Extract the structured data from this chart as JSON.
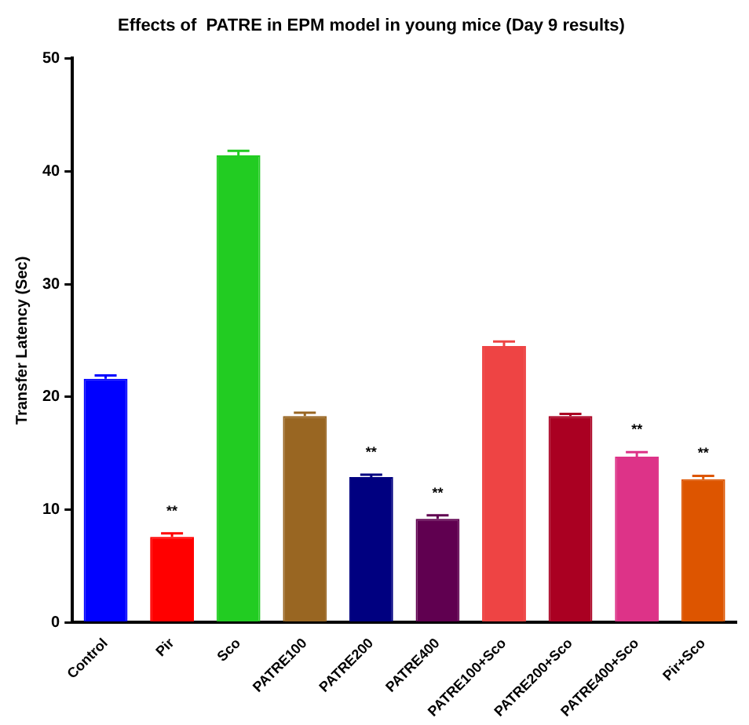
{
  "chart_data": {
    "type": "bar",
    "title": "Effects of  PATRE in EPM model in young mice (Day 9 results)",
    "ylabel": "Transfer Latency (Sec)",
    "categories": [
      "Control",
      "Pir",
      "Sco",
      "PATRE100",
      "PATRE200",
      "PATRE400",
      "PATRE100+Sco",
      "PATRE200+Sco",
      "PATRE400+Sco",
      "Pir+Sco"
    ],
    "values": [
      21.6,
      7.6,
      41.4,
      18.3,
      12.9,
      9.2,
      24.5,
      18.3,
      14.7,
      12.7
    ],
    "errors": [
      [
        21.6,
        21.9
      ],
      [
        7.6,
        7.9
      ],
      [
        41.4,
        41.8
      ],
      [
        18.3,
        18.6
      ],
      [
        12.9,
        13.1
      ],
      [
        9.2,
        9.5
      ],
      [
        24.5,
        24.9
      ],
      [
        18.3,
        18.5
      ],
      [
        14.7,
        15.1
      ],
      [
        12.7,
        13.0
      ]
    ],
    "colors": [
      "#0000ff",
      "#ff0000",
      "#22cc22",
      "#996622",
      "#000080",
      "#600050",
      "#ee4444",
      "#aa0022",
      "#dd3388",
      "#dd5500"
    ],
    "ylim": [
      0,
      50
    ],
    "yticks": [
      0,
      10,
      20,
      30,
      40,
      50
    ],
    "grid": false,
    "legend": false,
    "annotations": [
      {
        "text": "**",
        "x": "Pir",
        "y": 7.6
      },
      {
        "text": "**",
        "x": "PATRE200",
        "y": 12.9
      },
      {
        "text": "**",
        "x": "PATRE400",
        "y": 9.2
      },
      {
        "text": "**",
        "x": "PATRE400+Sco",
        "y": 14.7
      },
      {
        "text": "**",
        "x": "Pir+Sco",
        "y": 12.7
      }
    ]
  }
}
